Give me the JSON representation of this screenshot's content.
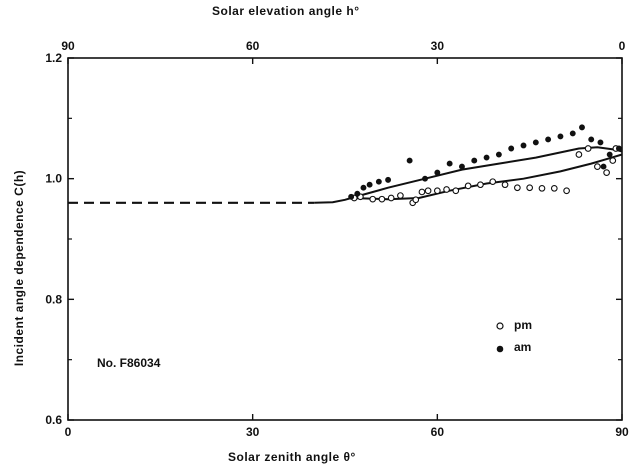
{
  "chart_data": {
    "type": "scatter",
    "xlabel": "Solar zenith angle θ°",
    "x2label": "Solar elevation angle h°",
    "ylabel": "Incident angle dependence  C(h)",
    "xlim": [
      0,
      90
    ],
    "ylim": [
      0.6,
      1.2
    ],
    "x_ticks": [
      0,
      30,
      60,
      90
    ],
    "x2_ticks": [
      90,
      60,
      30,
      0
    ],
    "y_ticks": [
      0.6,
      0.8,
      1.0,
      1.2
    ],
    "y_tick_labels": [
      "0.6",
      "0.8",
      "1.0",
      "1.2"
    ],
    "annotation": "No. F86034",
    "legend_position": "lower-right",
    "series": [
      {
        "name": "pm",
        "marker": "open-circle",
        "points": [
          [
            46.5,
            0.968
          ],
          [
            47.5,
            0.97
          ],
          [
            49.5,
            0.966
          ],
          [
            51,
            0.966
          ],
          [
            52.5,
            0.968
          ],
          [
            54,
            0.972
          ],
          [
            56,
            0.96
          ],
          [
            56.5,
            0.965
          ],
          [
            57.5,
            0.978
          ],
          [
            58.5,
            0.98
          ],
          [
            60,
            0.98
          ],
          [
            61.5,
            0.982
          ],
          [
            63,
            0.98
          ],
          [
            65,
            0.988
          ],
          [
            67,
            0.99
          ],
          [
            69,
            0.995
          ],
          [
            71,
            0.99
          ],
          [
            73,
            0.985
          ],
          [
            75,
            0.985
          ],
          [
            77,
            0.984
          ],
          [
            79,
            0.984
          ],
          [
            81,
            0.98
          ],
          [
            83,
            1.04
          ],
          [
            84.5,
            1.05
          ],
          [
            86,
            1.02
          ],
          [
            87.5,
            1.01
          ],
          [
            88.5,
            1.03
          ],
          [
            89,
            1.05
          ]
        ]
      },
      {
        "name": "am",
        "marker": "filled-circle",
        "points": [
          [
            46,
            0.97
          ],
          [
            47,
            0.975
          ],
          [
            48,
            0.985
          ],
          [
            49,
            0.99
          ],
          [
            50.5,
            0.995
          ],
          [
            52,
            0.998
          ],
          [
            55.5,
            1.03
          ],
          [
            58,
            1.0
          ],
          [
            60,
            1.01
          ],
          [
            62,
            1.025
          ],
          [
            64,
            1.02
          ],
          [
            66,
            1.03
          ],
          [
            68,
            1.035
          ],
          [
            70,
            1.04
          ],
          [
            72,
            1.05
          ],
          [
            74,
            1.055
          ],
          [
            76,
            1.06
          ],
          [
            78,
            1.065
          ],
          [
            80,
            1.07
          ],
          [
            82,
            1.075
          ],
          [
            83.5,
            1.085
          ],
          [
            85,
            1.065
          ],
          [
            86.5,
            1.06
          ],
          [
            87,
            1.02
          ],
          [
            88,
            1.04
          ],
          [
            89.5,
            1.05
          ]
        ]
      }
    ],
    "curves": [
      {
        "style": "dashed",
        "points": [
          [
            0,
            0.96
          ],
          [
            10,
            0.96
          ],
          [
            20,
            0.96
          ],
          [
            30,
            0.96
          ],
          [
            40,
            0.96
          ]
        ]
      },
      {
        "style": "solid",
        "points": [
          [
            40,
            0.96
          ],
          [
            43,
            0.961
          ],
          [
            45,
            0.965
          ],
          [
            46,
            0.968
          ]
        ]
      },
      {
        "style": "solid",
        "points": [
          [
            46,
            0.968
          ],
          [
            52,
            0.985
          ],
          [
            58,
            1.0
          ],
          [
            64,
            1.015
          ],
          [
            70,
            1.025
          ],
          [
            76,
            1.035
          ],
          [
            83,
            1.05
          ],
          [
            86,
            1.052
          ],
          [
            89,
            1.048
          ],
          [
            90,
            1.045
          ]
        ]
      },
      {
        "style": "solid",
        "points": [
          [
            46,
            0.968
          ],
          [
            52,
            0.966
          ],
          [
            57,
            0.968
          ],
          [
            62,
            0.98
          ],
          [
            68,
            0.992
          ],
          [
            74,
            1.0
          ],
          [
            80,
            1.012
          ],
          [
            85,
            1.025
          ],
          [
            88,
            1.034
          ],
          [
            90,
            1.04
          ]
        ]
      }
    ]
  }
}
